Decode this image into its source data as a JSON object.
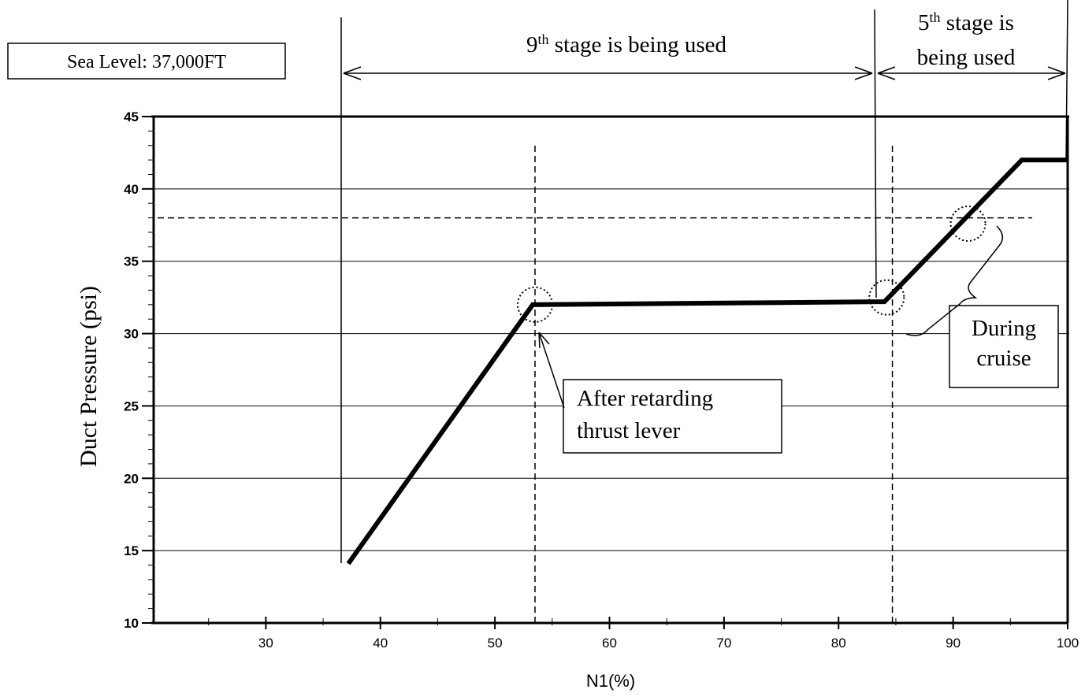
{
  "chart_data": {
    "type": "line",
    "title": "",
    "xlabel": "N1(%)",
    "ylabel": "Duct Pressure (psi)",
    "xlim": [
      20,
      100
    ],
    "ylim": [
      10,
      45
    ],
    "x_ticks": [
      30,
      40,
      50,
      60,
      70,
      80,
      90,
      100
    ],
    "y_ticks": [
      10,
      15,
      20,
      25,
      30,
      35,
      40,
      45
    ],
    "grid": "horizontal",
    "series": [
      {
        "name": "",
        "x": [
          37.2,
          53.3,
          83.5,
          84.0,
          96.0,
          100.0
        ],
        "y": [
          14.1,
          32.0,
          32.2,
          32.2,
          42.0,
          42.0
        ]
      }
    ],
    "reference_lines": {
      "horizontal_dashed_y": 38,
      "vertical_dashed_x": [
        53.5,
        84.7
      ]
    },
    "highlight_circles": [
      {
        "x": 53.5,
        "y": 32.0
      },
      {
        "x": 84.2,
        "y": 32.5
      },
      {
        "x": 91.3,
        "y": 37.6
      }
    ],
    "annotations": {
      "altitude_box": "Sea Level: 37,000FT",
      "stage9_label": "9th stage is being used",
      "stage5_label_line1": "5th stage is",
      "stage5_label_line2": "being used",
      "retard_label_line1": "After retarding",
      "retard_label_line2": "thrust lever",
      "cruise_label_line1": "During",
      "cruise_label_line2": "cruise"
    }
  }
}
